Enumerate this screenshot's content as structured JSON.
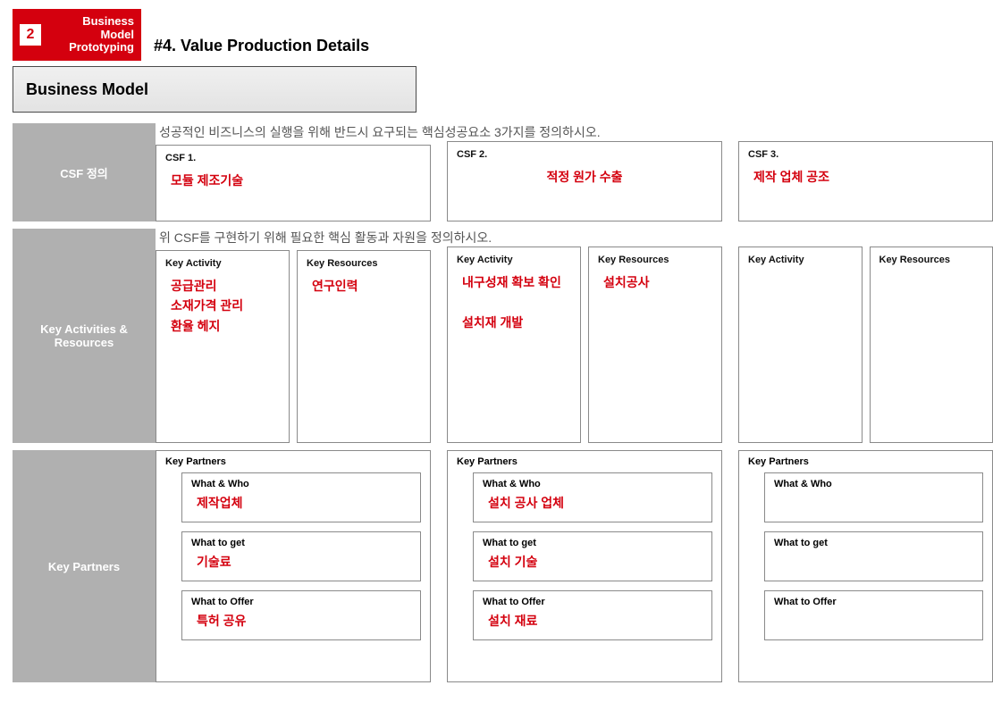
{
  "colors": {
    "accent": "#d4000e",
    "sidebar": "#b0b0b0",
    "border": "#8a8a8a",
    "text": "#111111",
    "muted": "#555555"
  },
  "header": {
    "badge_number": "2",
    "badge_line1": "Business",
    "badge_line2": "Model",
    "badge_line3": "Prototyping",
    "page_title": "#4. Value Production Details"
  },
  "bm_title": "Business Model",
  "rows": {
    "csf": {
      "side": "CSF 정의",
      "instruction": "성공적인 비즈니스의 실행을 위해 반드시 요구되는 핵심성공요소 3가지를 정의하시오.",
      "cards": [
        {
          "title": "CSF 1.",
          "value": "모듈 제조기술"
        },
        {
          "title": "CSF 2.",
          "value": "적정 원가 수출"
        },
        {
          "title": "CSF 3.",
          "value": "제작 업체 공조"
        }
      ]
    },
    "kar": {
      "side": "Key Activities & Resources",
      "instruction": "위 CSF를 구현하기 위해 필요한 핵심 활동과 자원을 정의하시오.",
      "cols": [
        {
          "activity_title": "Key Activity",
          "activity_val": "공급관리\n소재가격 관리\n환율 헤지",
          "resource_title": "Key Resources",
          "resource_val": "연구인력"
        },
        {
          "activity_title": "Key Activity",
          "activity_val": "내구성재 확보 확인\n\n설치재 개발",
          "resource_title": "Key Resources",
          "resource_val": "설치공사"
        },
        {
          "activity_title": "Key Activity",
          "activity_val": "",
          "resource_title": "Key Resources",
          "resource_val": ""
        }
      ]
    },
    "kp": {
      "side": "Key Partners",
      "cols": [
        {
          "outer": "Key Partners",
          "who_label": "What & Who",
          "who_val": "제작업체",
          "get_label": "What to get",
          "get_val": "기술료",
          "offer_label": "What to Offer",
          "offer_val": "특허 공유"
        },
        {
          "outer": "Key Partners",
          "who_label": "What & Who",
          "who_val": "설치 공사 업체",
          "get_label": "What to get",
          "get_val": "설치 기술",
          "offer_label": "What to Offer",
          "offer_val": "설치 재료"
        },
        {
          "outer": "Key Partners",
          "who_label": "What & Who",
          "who_val": "",
          "get_label": "What to get",
          "get_val": "",
          "offer_label": "What to Offer",
          "offer_val": ""
        }
      ]
    }
  }
}
